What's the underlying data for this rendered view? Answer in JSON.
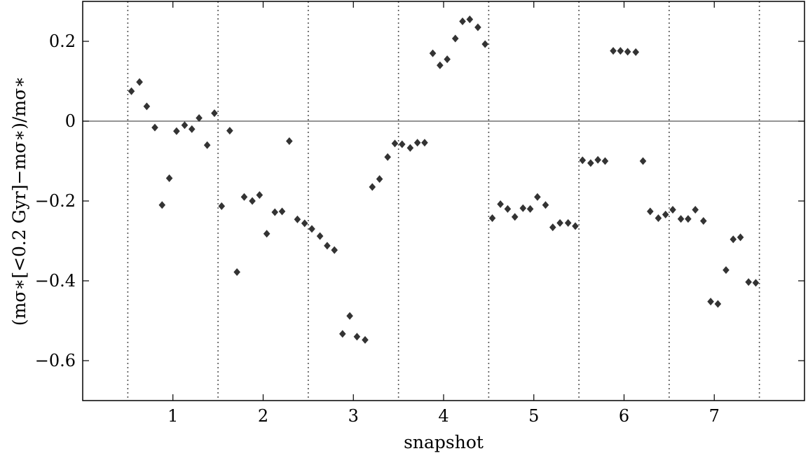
{
  "chart_data": {
    "type": "scatter",
    "xlabel": "snapshot",
    "ylabel": "(mσ∗[<0.2 Gyr]−mσ∗)/mσ∗",
    "xlim": [
      0,
      8
    ],
    "ylim": [
      -0.7,
      0.3
    ],
    "x_ticks": [
      1,
      2,
      3,
      4,
      5,
      6,
      7
    ],
    "y_ticks": [
      {
        "value": 0.2,
        "label": "0.2"
      },
      {
        "value": 0.0,
        "label": "0"
      },
      {
        "value": -0.2,
        "label": "−0.2"
      },
      {
        "value": -0.4,
        "label": "−0.4"
      },
      {
        "value": -0.6,
        "label": "−0.6"
      }
    ],
    "group_separators": [
      0.5,
      1.5,
      2.5,
      3.5,
      4.5,
      5.5,
      6.5,
      7.5
    ],
    "zero_line": 0,
    "marker": "diamond",
    "marker_color": "#333333",
    "series": [
      {
        "points": [
          [
            0.54,
            0.075
          ],
          [
            0.63,
            0.098
          ],
          [
            0.71,
            0.037
          ],
          [
            0.8,
            -0.016
          ],
          [
            0.88,
            -0.21
          ],
          [
            0.96,
            -0.143
          ],
          [
            1.04,
            -0.025
          ],
          [
            1.13,
            -0.01
          ],
          [
            1.21,
            -0.02
          ],
          [
            1.29,
            0.008
          ],
          [
            1.38,
            -0.06
          ],
          [
            1.46,
            0.02
          ],
          [
            1.54,
            -0.213
          ],
          [
            1.63,
            -0.024
          ],
          [
            1.71,
            -0.378
          ],
          [
            1.79,
            -0.19
          ],
          [
            1.88,
            -0.2
          ],
          [
            1.96,
            -0.185
          ],
          [
            2.04,
            -0.282
          ],
          [
            2.13,
            -0.228
          ],
          [
            2.21,
            -0.226
          ],
          [
            2.29,
            -0.05
          ],
          [
            2.38,
            -0.246
          ],
          [
            2.46,
            -0.256
          ],
          [
            2.54,
            -0.27
          ],
          [
            2.63,
            -0.288
          ],
          [
            2.71,
            -0.312
          ],
          [
            2.79,
            -0.323
          ],
          [
            2.88,
            -0.533
          ],
          [
            2.96,
            -0.488
          ],
          [
            3.04,
            -0.54
          ],
          [
            3.13,
            -0.548
          ],
          [
            3.21,
            -0.165
          ],
          [
            3.29,
            -0.145
          ],
          [
            3.38,
            -0.09
          ],
          [
            3.46,
            -0.056
          ],
          [
            3.54,
            -0.058
          ],
          [
            3.63,
            -0.067
          ],
          [
            3.71,
            -0.054
          ],
          [
            3.79,
            -0.054
          ],
          [
            3.88,
            0.17
          ],
          [
            3.96,
            0.14
          ],
          [
            4.04,
            0.155
          ],
          [
            4.13,
            0.207
          ],
          [
            4.21,
            0.25
          ],
          [
            4.29,
            0.255
          ],
          [
            4.38,
            0.235
          ],
          [
            4.46,
            0.193
          ],
          [
            4.54,
            -0.243
          ],
          [
            4.63,
            -0.208
          ],
          [
            4.71,
            -0.22
          ],
          [
            4.79,
            -0.24
          ],
          [
            4.88,
            -0.218
          ],
          [
            4.96,
            -0.22
          ],
          [
            5.04,
            -0.19
          ],
          [
            5.13,
            -0.21
          ],
          [
            5.21,
            -0.266
          ],
          [
            5.29,
            -0.255
          ],
          [
            5.38,
            -0.255
          ],
          [
            5.46,
            -0.263
          ],
          [
            5.54,
            -0.098
          ],
          [
            5.63,
            -0.105
          ],
          [
            5.71,
            -0.097
          ],
          [
            5.79,
            -0.1
          ],
          [
            5.88,
            0.176
          ],
          [
            5.96,
            0.176
          ],
          [
            6.04,
            0.174
          ],
          [
            6.13,
            0.173
          ],
          [
            6.21,
            -0.1
          ],
          [
            6.29,
            -0.226
          ],
          [
            6.38,
            -0.243
          ],
          [
            6.46,
            -0.234
          ],
          [
            6.54,
            -0.222
          ],
          [
            6.63,
            -0.245
          ],
          [
            6.71,
            -0.245
          ],
          [
            6.79,
            -0.222
          ],
          [
            6.88,
            -0.25
          ],
          [
            6.96,
            -0.452
          ],
          [
            7.04,
            -0.458
          ],
          [
            7.13,
            -0.373
          ],
          [
            7.21,
            -0.296
          ],
          [
            7.29,
            -0.291
          ],
          [
            7.38,
            -0.403
          ],
          [
            7.46,
            -0.405
          ]
        ]
      }
    ]
  }
}
